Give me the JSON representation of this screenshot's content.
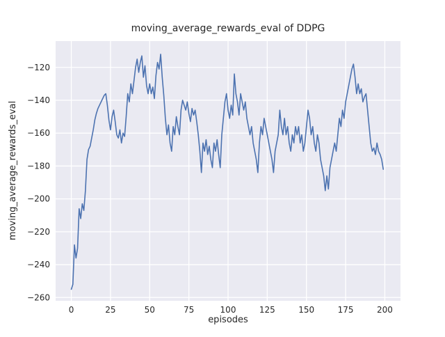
{
  "chart_data": {
    "type": "line",
    "title": "moving_average_rewards_eval of DDPG",
    "xlabel": "episodes",
    "ylabel": "moving_average_rewards_eval",
    "x_start": 0,
    "x_step": 1,
    "xlim": [
      -10,
      210
    ],
    "ylim": [
      -262,
      -104
    ],
    "xticks": [
      0,
      25,
      50,
      75,
      100,
      125,
      150,
      175,
      200
    ],
    "yticks": [
      -260,
      -240,
      -220,
      -200,
      -180,
      -160,
      -140,
      -120
    ],
    "grid": true,
    "legend": false,
    "line_color": "#4c72b0",
    "plot_background": "#eaeaf2",
    "grid_color": "#ffffff",
    "values": [
      -255,
      -252,
      -228,
      -236,
      -230,
      -206,
      -212,
      -203,
      -207,
      -195,
      -176,
      -170,
      -168,
      -163,
      -158,
      -152,
      -148,
      -145,
      -143,
      -141,
      -139,
      -137,
      -136,
      -143,
      -152,
      -158,
      -150,
      -146,
      -153,
      -161,
      -163,
      -158,
      -166,
      -160,
      -162,
      -150,
      -136,
      -141,
      -130,
      -136,
      -128,
      -120,
      -115,
      -123,
      -117,
      -113,
      -126,
      -119,
      -131,
      -136,
      -130,
      -136,
      -132,
      -139,
      -125,
      -117,
      -121,
      -112,
      -126,
      -137,
      -151,
      -161,
      -155,
      -166,
      -171,
      -156,
      -161,
      -150,
      -156,
      -161,
      -146,
      -140,
      -143,
      -146,
      -141,
      -148,
      -153,
      -145,
      -149,
      -146,
      -153,
      -161,
      -171,
      -184,
      -166,
      -171,
      -164,
      -173,
      -168,
      -176,
      -181,
      -166,
      -171,
      -164,
      -173,
      -181,
      -161,
      -151,
      -141,
      -136,
      -146,
      -151,
      -143,
      -149,
      -124,
      -136,
      -141,
      -149,
      -136,
      -141,
      -146,
      -141,
      -151,
      -156,
      -161,
      -156,
      -166,
      -171,
      -176,
      -184,
      -166,
      -156,
      -161,
      -151,
      -156,
      -161,
      -166,
      -171,
      -176,
      -184,
      -171,
      -166,
      -161,
      -146,
      -156,
      -161,
      -151,
      -161,
      -156,
      -166,
      -171,
      -161,
      -166,
      -156,
      -161,
      -156,
      -166,
      -161,
      -171,
      -166,
      -156,
      -146,
      -151,
      -161,
      -156,
      -166,
      -171,
      -161,
      -166,
      -176,
      -181,
      -186,
      -195,
      -186,
      -194,
      -181,
      -176,
      -171,
      -166,
      -171,
      -161,
      -151,
      -156,
      -146,
      -151,
      -141,
      -136,
      -131,
      -126,
      -121,
      -118,
      -126,
      -136,
      -130,
      -136,
      -133,
      -141,
      -138,
      -136,
      -146,
      -156,
      -166,
      -171,
      -169,
      -173,
      -166,
      -171,
      -173,
      -176,
      -182
    ]
  }
}
